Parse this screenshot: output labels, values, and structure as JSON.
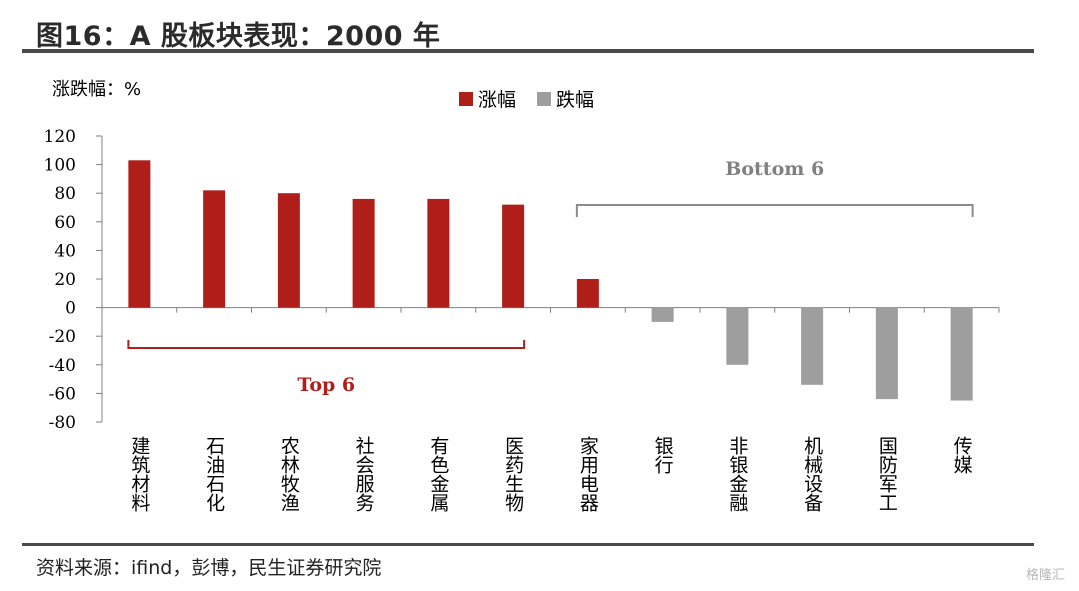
{
  "header": {
    "title": "图16：A 股板块表现：2000 年"
  },
  "footer": {
    "source": "资料来源：ifind，彭博，民生证券研究院",
    "watermark": "格隆汇"
  },
  "colors": {
    "rise": "#B01E1A",
    "fall": "#9E9E9E",
    "top_bracket": "#B01E1A",
    "bottom_bracket": "#8C8C8C",
    "bottom_text": "#808080",
    "rule": "#4A4A4A"
  },
  "chart_data": {
    "type": "bar",
    "ylabel": "涨跌幅：%",
    "ylim": [
      -80,
      120
    ],
    "yticks": [
      120,
      100,
      80,
      60,
      40,
      20,
      0,
      -20,
      -40,
      -60,
      -80
    ],
    "grid": false,
    "legend_position": "top-center",
    "legend": [
      "涨幅",
      "跌幅"
    ],
    "categories": [
      "建筑材料",
      "石油石化",
      "农林牧渔",
      "社会服务",
      "有色金属",
      "医药生物",
      "家用电器",
      "银行",
      "非银金融",
      "机械设备",
      "国防军工",
      "传媒"
    ],
    "values": [
      103,
      82,
      80,
      76,
      76,
      72,
      20,
      -10,
      -40,
      -54,
      -64,
      -65
    ],
    "annotations": [
      {
        "text": "Top 6",
        "from_index": 0,
        "to_index": 5
      },
      {
        "text": "Bottom 6",
        "from_index": 6,
        "to_index": 11
      }
    ]
  }
}
